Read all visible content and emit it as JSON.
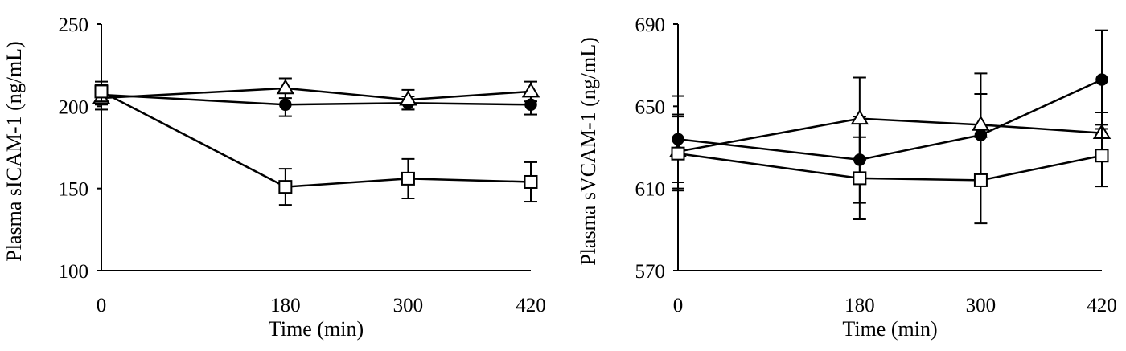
{
  "chart_data": [
    {
      "type": "line",
      "title": "",
      "xlabel": "Time (min)",
      "ylabel": "Plasma sICAM-1 (ng/mL)",
      "categories": [
        "0",
        "180",
        "300",
        "420"
      ],
      "x": [
        0,
        180,
        300,
        420
      ],
      "ylim": [
        100,
        250
      ],
      "yticks": [
        "100",
        "150",
        "200",
        "250"
      ],
      "grid": false,
      "legend": "none",
      "series": [
        {
          "marker": "filled-circle",
          "values": [
            207,
            201,
            202,
            201
          ],
          "error": [
            6,
            7,
            4,
            6
          ]
        },
        {
          "marker": "open-triangle",
          "values": [
            205,
            211,
            204,
            209
          ],
          "error": [
            7,
            6,
            6,
            6
          ]
        },
        {
          "marker": "open-square",
          "values": [
            209,
            151,
            156,
            154
          ],
          "error": [
            6,
            11,
            12,
            12
          ]
        }
      ]
    },
    {
      "type": "line",
      "title": "",
      "xlabel": "Time (min)",
      "ylabel": "Plasma sVCAM-1 (ng/mL)",
      "categories": [
        "0",
        "180",
        "300",
        "420"
      ],
      "x": [
        0,
        180,
        300,
        420
      ],
      "ylim": [
        570,
        690
      ],
      "yticks": [
        "570",
        "610",
        "650",
        "690"
      ],
      "grid": false,
      "legend": "none",
      "series": [
        {
          "marker": "filled-circle",
          "values": [
            634,
            624,
            636,
            663
          ],
          "error": [
            21,
            21,
            20,
            24
          ]
        },
        {
          "marker": "open-triangle",
          "values": [
            628,
            644,
            641,
            637
          ],
          "error": [
            18,
            20,
            25,
            10
          ]
        },
        {
          "marker": "open-square",
          "values": [
            627,
            615,
            614,
            626
          ],
          "error": [
            18,
            20,
            21,
            15
          ]
        }
      ]
    }
  ]
}
